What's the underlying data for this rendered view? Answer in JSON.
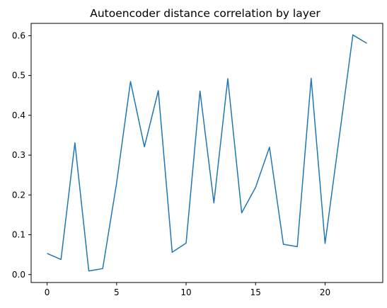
{
  "chart_data": {
    "type": "line",
    "title": "Autoencoder distance correlation by layer",
    "xlabel": "",
    "ylabel": "",
    "xlim": [
      -1.15,
      24.15
    ],
    "ylim": [
      -0.02,
      0.631
    ],
    "xticks": [
      0,
      5,
      10,
      15,
      20
    ],
    "yticks": [
      0.0,
      0.1,
      0.2,
      0.3,
      0.4,
      0.5,
      0.6
    ],
    "xtick_labels": [
      "0",
      "5",
      "10",
      "15",
      "20"
    ],
    "ytick_labels": [
      "0.0",
      "0.1",
      "0.2",
      "0.3",
      "0.4",
      "0.5",
      "0.6"
    ],
    "grid": false,
    "legend": "none",
    "series": [
      {
        "color": "#1f77b4",
        "x": [
          0,
          1,
          2,
          3,
          4,
          5,
          6,
          7,
          8,
          9,
          10,
          11,
          12,
          13,
          14,
          15,
          16,
          17,
          18,
          19,
          20,
          21,
          22,
          23
        ],
        "y": [
          0.053,
          0.038,
          0.331,
          0.009,
          0.015,
          0.23,
          0.485,
          0.321,
          0.462,
          0.056,
          0.079,
          0.461,
          0.18,
          0.492,
          0.155,
          0.219,
          0.32,
          0.076,
          0.07,
          0.493,
          0.078,
          0.34,
          0.602,
          0.581
        ]
      }
    ]
  }
}
